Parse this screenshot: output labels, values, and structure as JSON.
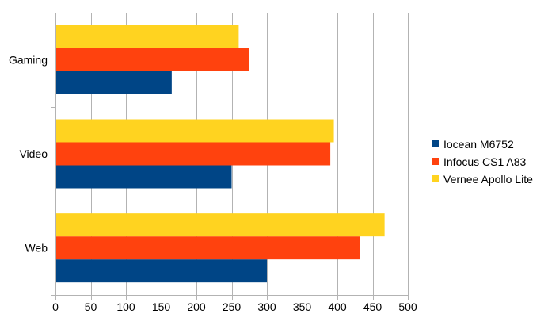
{
  "chart_data": {
    "type": "bar",
    "orientation": "horizontal",
    "categories": [
      "Gaming",
      "Video",
      "Web"
    ],
    "series": [
      {
        "name": "Iocean M6752",
        "color": "#004586",
        "values": [
          165,
          250,
          300
        ]
      },
      {
        "name": "Infocus CS1 A83",
        "color": "#ff420e",
        "values": [
          275,
          390,
          432
        ]
      },
      {
        "name": "Vernee Apollo Lite",
        "color": "#ffd320",
        "values": [
          260,
          395,
          467
        ]
      }
    ],
    "xlim": [
      0,
      500
    ],
    "xticks": [
      0,
      50,
      100,
      150,
      200,
      250,
      300,
      350,
      400,
      450,
      500
    ],
    "grid": "vertical",
    "legend": "right"
  }
}
